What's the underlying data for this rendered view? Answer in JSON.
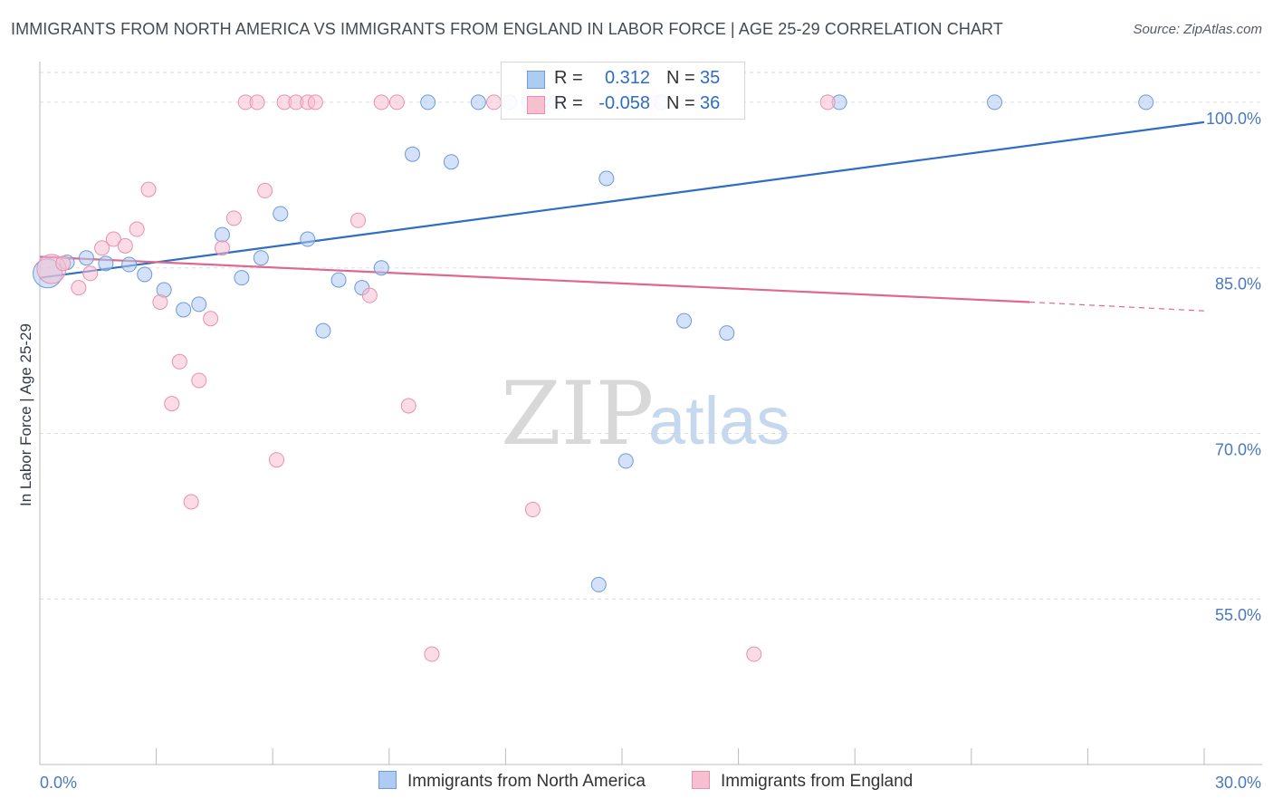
{
  "title": "IMMIGRANTS FROM NORTH AMERICA VS IMMIGRANTS FROM ENGLAND IN LABOR FORCE | AGE 25-29 CORRELATION CHART",
  "source": "Source: ZipAtlas.com",
  "watermark": {
    "zip": "ZIP",
    "atlas": "atlas"
  },
  "legend": {
    "r_label": "R =",
    "n_label": "N =",
    "north_america": {
      "r": "0.312",
      "n": "35"
    },
    "england": {
      "r": "-0.058",
      "n": "36"
    }
  },
  "colors": {
    "north_america_fill": "#aecbf2",
    "north_america_stroke": "#6d9ad8",
    "north_america_line": "#2f6dc4",
    "england_fill": "#f7c0d1",
    "england_stroke": "#e890ad",
    "england_line": "#e0678f",
    "axis_text": "#4a78c2",
    "grid": "#dddddd"
  },
  "chart_data": {
    "type": "scatter",
    "xlabel": "",
    "ylabel": "In Labor Force | Age 25-29",
    "xlim": [
      0,
      30
    ],
    "ylim": [
      40,
      105
    ],
    "x_tick_labels": [
      "0.0%",
      "30.0%"
    ],
    "y_ticks": [
      55,
      70,
      85,
      100
    ],
    "y_tick_labels": [
      "55.0%",
      "70.0%",
      "85.0%",
      "100.0%"
    ],
    "grid": true,
    "legend_position": "top-center",
    "series": [
      {
        "name": "Immigrants from North America",
        "trend": {
          "x": [
            0,
            30
          ],
          "y": [
            84.1,
            98.2
          ],
          "style": "solid"
        },
        "points": [
          {
            "x": 0.2,
            "y": 84.5,
            "size": "large"
          },
          {
            "x": 0.7,
            "y": 85.5
          },
          {
            "x": 1.2,
            "y": 85.9
          },
          {
            "x": 1.7,
            "y": 85.4
          },
          {
            "x": 2.3,
            "y": 85.3
          },
          {
            "x": 2.7,
            "y": 84.4
          },
          {
            "x": 3.2,
            "y": 83.0
          },
          {
            "x": 3.7,
            "y": 81.2
          },
          {
            "x": 4.1,
            "y": 81.7
          },
          {
            "x": 4.7,
            "y": 88.0
          },
          {
            "x": 5.2,
            "y": 84.1
          },
          {
            "x": 5.7,
            "y": 85.9
          },
          {
            "x": 6.2,
            "y": 89.9
          },
          {
            "x": 6.9,
            "y": 87.6
          },
          {
            "x": 7.3,
            "y": 79.3
          },
          {
            "x": 7.7,
            "y": 83.9
          },
          {
            "x": 8.3,
            "y": 83.2
          },
          {
            "x": 8.8,
            "y": 85.0
          },
          {
            "x": 9.6,
            "y": 95.3
          },
          {
            "x": 10.0,
            "y": 100.0
          },
          {
            "x": 10.6,
            "y": 94.6
          },
          {
            "x": 11.3,
            "y": 100.0
          },
          {
            "x": 12.1,
            "y": 100.0
          },
          {
            "x": 12.6,
            "y": 100.0
          },
          {
            "x": 12.9,
            "y": 100.0
          },
          {
            "x": 13.3,
            "y": 100.0
          },
          {
            "x": 14.4,
            "y": 56.3
          },
          {
            "x": 14.6,
            "y": 93.1
          },
          {
            "x": 15.1,
            "y": 67.5
          },
          {
            "x": 16.0,
            "y": 100.0
          },
          {
            "x": 16.6,
            "y": 80.2
          },
          {
            "x": 17.7,
            "y": 79.1
          },
          {
            "x": 20.6,
            "y": 100.0
          },
          {
            "x": 24.6,
            "y": 100.0
          },
          {
            "x": 28.5,
            "y": 100.0
          }
        ]
      },
      {
        "name": "Immigrants from England",
        "trend": {
          "x": [
            0,
            25.5,
            30
          ],
          "y": [
            86.0,
            81.9,
            81.1
          ],
          "style": "solid-then-dashed"
        },
        "points": [
          {
            "x": 0.3,
            "y": 84.9,
            "size": "large"
          },
          {
            "x": 0.6,
            "y": 85.4
          },
          {
            "x": 1.0,
            "y": 83.2
          },
          {
            "x": 1.3,
            "y": 84.5
          },
          {
            "x": 1.6,
            "y": 86.8
          },
          {
            "x": 1.9,
            "y": 87.6
          },
          {
            "x": 2.2,
            "y": 87.0
          },
          {
            "x": 2.5,
            "y": 88.5
          },
          {
            "x": 2.8,
            "y": 92.1
          },
          {
            "x": 3.1,
            "y": 81.9
          },
          {
            "x": 3.4,
            "y": 72.7
          },
          {
            "x": 3.6,
            "y": 76.5
          },
          {
            "x": 3.9,
            "y": 63.8
          },
          {
            "x": 4.1,
            "y": 74.8
          },
          {
            "x": 4.4,
            "y": 80.4
          },
          {
            "x": 4.7,
            "y": 86.8
          },
          {
            "x": 5.0,
            "y": 89.5
          },
          {
            "x": 5.3,
            "y": 100.0
          },
          {
            "x": 5.6,
            "y": 100.0
          },
          {
            "x": 5.8,
            "y": 92.0
          },
          {
            "x": 6.1,
            "y": 67.6
          },
          {
            "x": 6.3,
            "y": 100.0
          },
          {
            "x": 6.6,
            "y": 100.0
          },
          {
            "x": 6.9,
            "y": 100.0
          },
          {
            "x": 7.1,
            "y": 100.0
          },
          {
            "x": 8.2,
            "y": 89.3
          },
          {
            "x": 8.5,
            "y": 82.5
          },
          {
            "x": 8.8,
            "y": 100.0
          },
          {
            "x": 9.2,
            "y": 100.0
          },
          {
            "x": 9.5,
            "y": 72.5
          },
          {
            "x": 10.1,
            "y": 50.0
          },
          {
            "x": 11.7,
            "y": 100.0
          },
          {
            "x": 12.7,
            "y": 63.1
          },
          {
            "x": 15.7,
            "y": 100.0
          },
          {
            "x": 18.4,
            "y": 50.0
          },
          {
            "x": 20.3,
            "y": 100.0
          }
        ]
      }
    ]
  }
}
